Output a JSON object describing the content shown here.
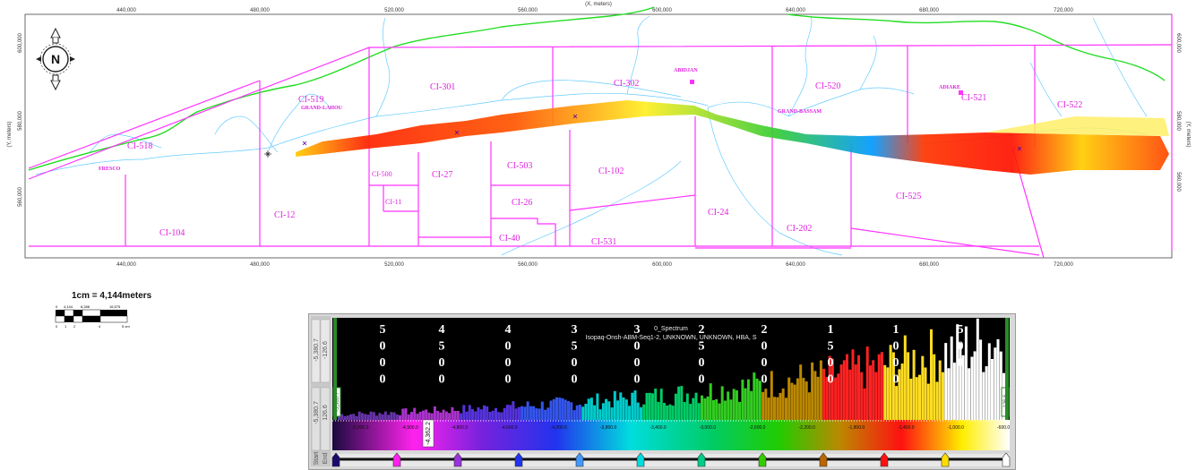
{
  "map": {
    "top_axis_title": "(X, meters)",
    "left_axis_title": "(Y, meters)",
    "right_axis_title": "(Y, meters)",
    "x_ticks": [
      "440,000",
      "480,000",
      "520,000",
      "560,000",
      "600,000",
      "640,000",
      "680,000",
      "720,000"
    ],
    "y_ticks": [
      "600,000",
      "580,000",
      "560,000"
    ],
    "north_label": "N",
    "blocks": [
      "CI-518",
      "CI-519",
      "CI-301",
      "CI-302",
      "CI-520",
      "CI-521",
      "CI-522",
      "CI-500",
      "CI-11",
      "CI-27",
      "CI-503",
      "CI-102",
      "CI-26",
      "CI-40",
      "CI-531",
      "CI-24",
      "CI-202",
      "CI-525",
      "CI-104",
      "CI-12"
    ],
    "towns": [
      "ABIDJAN",
      "GRAND-LAHOU",
      "GRAND-BASSAM",
      "ADIAKE",
      "FRESCO"
    ],
    "colors": {
      "block_outline": "#ff33ff",
      "shoreline": "#22dd22",
      "rivers": "#66ccff"
    }
  },
  "scale": {
    "label": "1cm = 4,144meters",
    "meter_ticks": [
      "0",
      "4,144",
      "8,288",
      "16,575"
    ],
    "cm_ticks": [
      "0",
      "1",
      "2",
      "4",
      "5 cm"
    ]
  },
  "spectrum": {
    "title": "0_Spectrum",
    "subtitle": "Isopaq-Onsh-ABM-Seq1-2, UNKNOWN, UNKNOWN, HBA, S",
    "left_inputs": [
      "-5,380.7",
      "-126.6",
      "-5,380.7",
      "126.6"
    ],
    "marker_low": "-5,380.7",
    "marker_high": "-126.6",
    "pointer_value": "-4,362.2",
    "start_label": "Start",
    "end_label": "End",
    "column_numbers": [
      "5000",
      "4500",
      "4000",
      "3500",
      "3000",
      "2500",
      "2000",
      "1500",
      "1000",
      "500"
    ],
    "legend_ticks": [
      "-5,000.0",
      "-4,900.0",
      "-4,800.0",
      "-4,600.0",
      "-4,200.0",
      "-3,800.0",
      "-3,400.0",
      "-3,000.0",
      "-2,600.0",
      "-2,200.0",
      "-1,800.0",
      "-1,400.0",
      "-1,000.0",
      "-600.0"
    ],
    "swatches": [
      "#1a0a6e",
      "#ff22ee",
      "#9933dd",
      "#2233ee",
      "#4499ff",
      "#00dddd",
      "#00cc88",
      "#33cc00",
      "#bb6600",
      "#ff1111",
      "#ffdd00",
      "#ffffff"
    ]
  }
}
